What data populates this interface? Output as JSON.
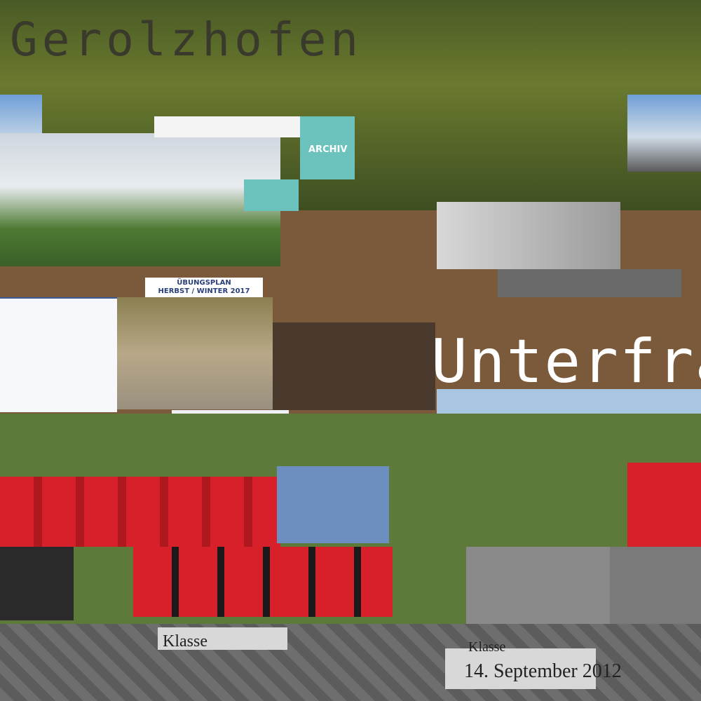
{
  "header": {
    "title": "Gerolzhofen"
  },
  "archive": {
    "label": "ARCHIV"
  },
  "schedule": {
    "title": "ÜBUNGSPLAN",
    "subtitle": "HERBST / WINTER 2017"
  },
  "overlay": {
    "word": "Unterfra"
  },
  "captions": {
    "left": "Klasse",
    "right": "Klasse",
    "date": "14. September 2012"
  }
}
